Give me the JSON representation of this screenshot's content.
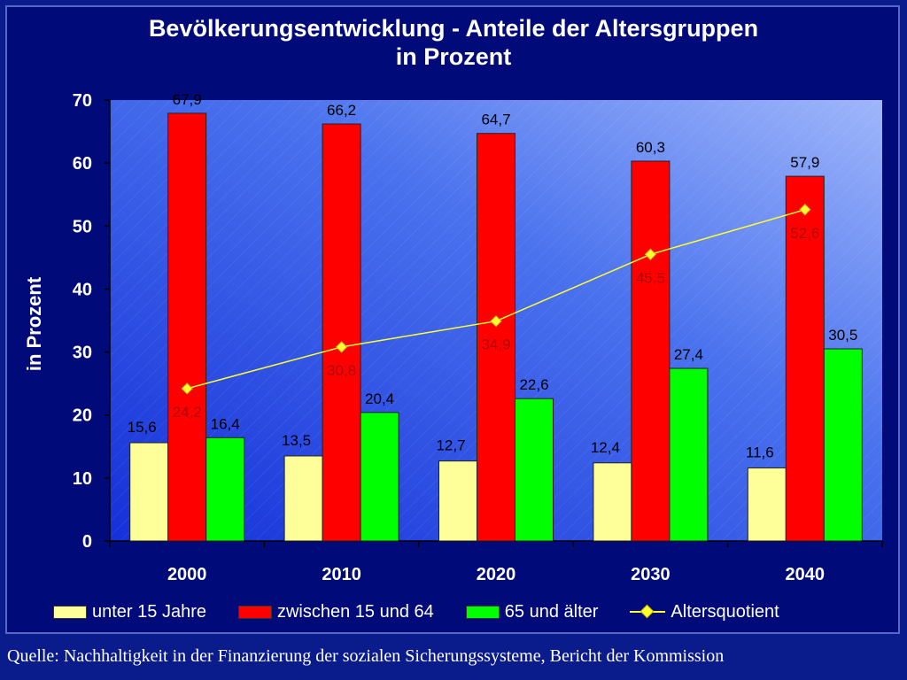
{
  "chart_data": {
    "type": "bar",
    "title_line1": "Bevölkerungsentwicklung - Anteile der Altersgruppen",
    "title_line2": "in Prozent",
    "ylabel": "in Prozent",
    "xlabel": "",
    "ylim": [
      0,
      70
    ],
    "yticks": [
      "0",
      "10",
      "20",
      "30",
      "40",
      "50",
      "60",
      "70"
    ],
    "categories": [
      "2000",
      "2010",
      "2020",
      "2030",
      "2040"
    ],
    "series": [
      {
        "name": "unter 15 Jahre",
        "kind": "bar",
        "color": "#ffff99",
        "values": [
          15.6,
          13.5,
          12.7,
          12.4,
          11.6
        ],
        "labels": [
          "15,6",
          "13,5",
          "12,7",
          "12,4",
          "11,6"
        ]
      },
      {
        "name": "zwischen 15 und 64",
        "kind": "bar",
        "color": "#ff0000",
        "values": [
          67.9,
          66.2,
          64.7,
          60.3,
          57.9
        ],
        "labels": [
          "67,9",
          "66,2",
          "64,7",
          "60,3",
          "57,9"
        ]
      },
      {
        "name": "65 und älter",
        "kind": "bar",
        "color": "#00ff00",
        "values": [
          16.4,
          20.4,
          22.6,
          27.4,
          30.5
        ],
        "labels": [
          "16,4",
          "20,4",
          "22,6",
          "27,4",
          "30,5"
        ]
      },
      {
        "name": "Altersquotient",
        "kind": "line",
        "color": "#ffff33",
        "values": [
          24.2,
          30.8,
          34.9,
          45.5,
          52.6
        ],
        "labels": [
          "24,2",
          "30,8",
          "34,9",
          "45,5",
          "52,6"
        ]
      }
    ],
    "legend_position": "bottom",
    "grid": false
  },
  "source": "Quelle: Nachhaltigkeit in der Finanzierung der sozialen Sicherungssysteme, Bericht der Kommission"
}
